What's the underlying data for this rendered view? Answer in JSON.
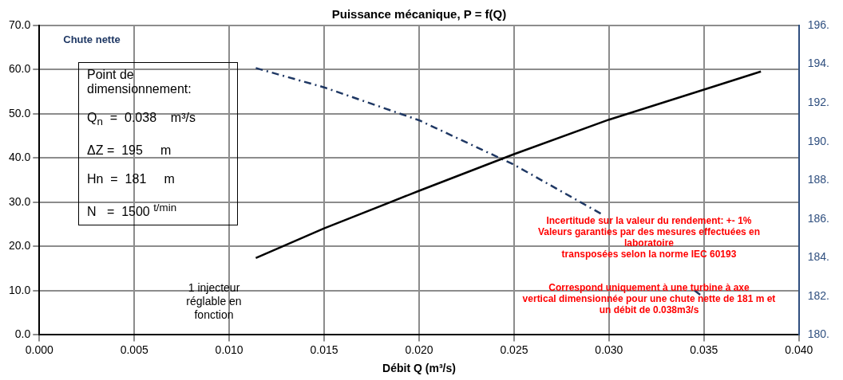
{
  "chart_data": {
    "type": "line",
    "title": "Puissance mécanique, P = f(Q)",
    "xlabel": "Débit Q (m³/s)",
    "xlim": [
      0,
      0.04
    ],
    "xticks": [
      {
        "value": 0,
        "label": "0.000"
      },
      0.005,
      {
        "value": 0.01,
        "label": "0.010"
      },
      0.015,
      {
        "value": 0.02,
        "label": "0.020"
      },
      0.025,
      {
        "value": 0.03,
        "label": "0.030"
      },
      0.035,
      {
        "value": 0.04,
        "label": "0.040"
      }
    ],
    "ylim": [
      0,
      70
    ],
    "yticks": [
      {
        "value": 0,
        "label": "0.0"
      },
      {
        "value": 10,
        "label": "10.0"
      },
      {
        "value": 20,
        "label": "20.0"
      },
      {
        "value": 30,
        "label": "30.0"
      },
      {
        "value": 40,
        "label": "40.0"
      },
      {
        "value": 50,
        "label": "50.0"
      },
      {
        "value": 60,
        "label": "60.0"
      },
      {
        "value": 70,
        "label": "70.0"
      }
    ],
    "y2lim": [
      180,
      196
    ],
    "y2ticks": [
      {
        "value": 180,
        "label": "180."
      },
      {
        "value": 182,
        "label": "182."
      },
      {
        "value": 184,
        "label": "184."
      },
      {
        "value": 186,
        "label": "186."
      },
      {
        "value": 188,
        "label": "188."
      },
      {
        "value": 190,
        "label": "190."
      },
      {
        "value": 192,
        "label": "192."
      },
      {
        "value": 194,
        "label": "194."
      },
      {
        "value": 196,
        "label": "196."
      }
    ],
    "grid": true,
    "legend": false,
    "marker": "none",
    "series": [
      {
        "color": "#000000",
        "line_style": "solid",
        "x": [
          0.0114,
          0.015,
          0.02,
          0.025,
          0.03,
          0.035,
          0.038
        ],
        "values": [
          17.4,
          24.1,
          32.6,
          40.9,
          48.7,
          55.5,
          59.6
        ]
      },
      {
        "name": "Chute nette",
        "color": "#1f3864",
        "axis": "y2",
        "line_style": "dashed",
        "x": [
          0.0114,
          0.015,
          0.02,
          0.025,
          0.0297,
          0.032,
          0.0345,
          0.0349
        ],
        "values": [
          193.8,
          192.8,
          191.1,
          188.8,
          186.2,
          null,
          182.3,
          182.0
        ]
      }
    ],
    "annotations": [
      "Point de dimensionnement:\n\nQ$_{n}$  =  0.038    m³/s\n\nΔZ =  195     m\n\nHn  =  181     m\n\nN   =  1500 $^{t/min}$",
      "1 injecteur\nréglable en\nfonction",
      "Incertitude sur la valeur du rendement: +- 1%\nValeurs garanties par des mesures effectuées en\nlaboratoire\ntransposées selon la norme IEC 60193",
      "Correspond uniquement à une turbine à axe\nvertical dimensionnée pour une chute nette de 181 m et\nun débit de 0.038m3/s"
    ]
  }
}
